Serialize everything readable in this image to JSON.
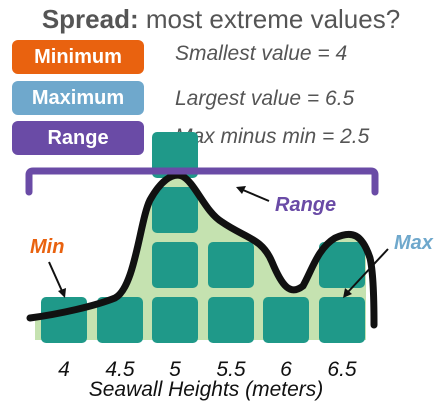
{
  "title": {
    "bold": "Spread:",
    "rest": "most extreme values?"
  },
  "badges": [
    {
      "label": "Minimum",
      "color": "#e9620f",
      "description": "Smallest value = 4"
    },
    {
      "label": "Maximum",
      "color": "#6fa8cc",
      "description": "Largest value = 6.5"
    },
    {
      "label": "Range",
      "color": "#6a4ba6",
      "description": "Max minus min = 2.5"
    }
  ],
  "annotations": {
    "min": {
      "text": "Min",
      "color": "#e9620f"
    },
    "max": {
      "text": "Max",
      "color": "#6fa8cc"
    },
    "range": {
      "text": "Range",
      "color": "#6a4ba6"
    }
  },
  "x_axis": {
    "label": "Seawall Heights (meters)",
    "ticks": [
      "4",
      "4.5",
      "5",
      "5.5",
      "6",
      "6.5"
    ]
  },
  "dot_counts": [
    1,
    1,
    4,
    2,
    1,
    2
  ],
  "colors": {
    "square": "#1f9989",
    "fill": "#c5e2b0",
    "curve": "#111111"
  }
}
